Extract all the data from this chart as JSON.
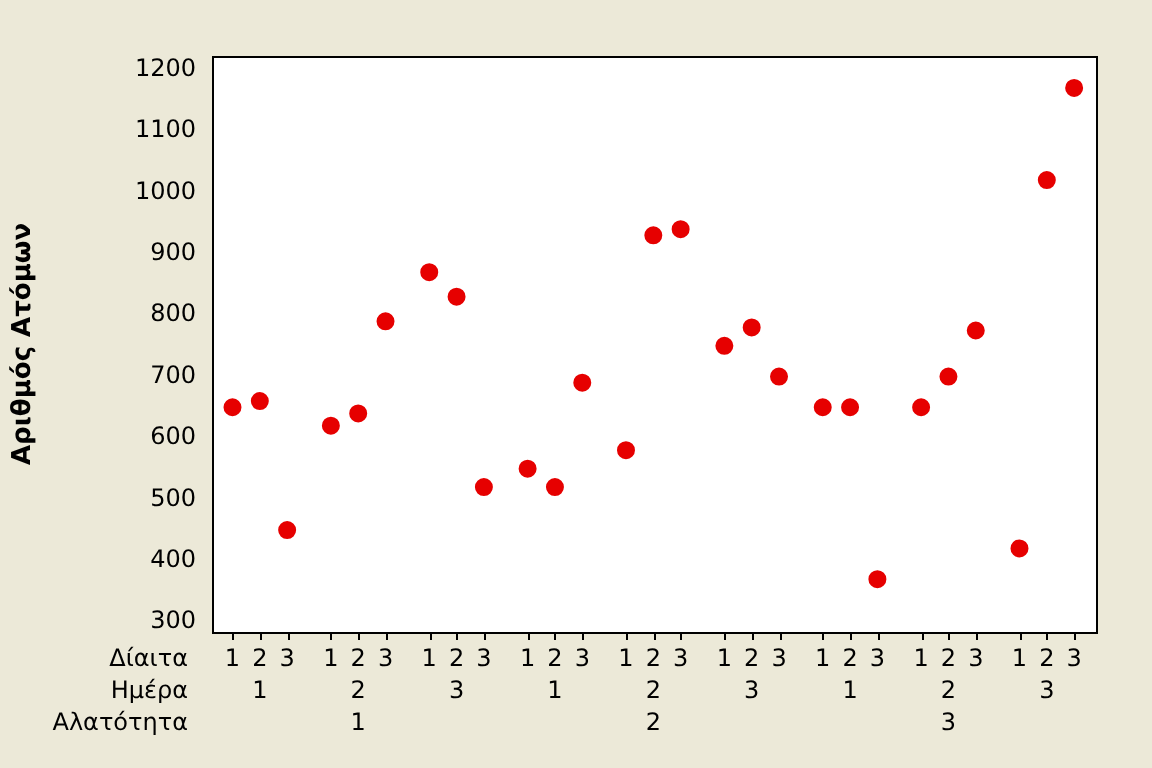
{
  "chart_data": {
    "type": "scatter",
    "ylabel": "Αριθμός Ατόμων",
    "categories": [
      "1",
      "2",
      "3",
      "1",
      "2",
      "3",
      "1",
      "2",
      "3",
      "1",
      "2",
      "3",
      "1",
      "2",
      "3",
      "1",
      "2",
      "3",
      "1",
      "2",
      "3",
      "1",
      "2",
      "3",
      "1",
      "2",
      "3"
    ],
    "values": [
      650,
      660,
      450,
      620,
      640,
      790,
      870,
      830,
      520,
      550,
      520,
      690,
      580,
      930,
      940,
      750,
      780,
      700,
      650,
      650,
      370,
      650,
      700,
      775,
      420,
      1020,
      1170
    ],
    "color": "#e60000",
    "marker": "circle",
    "ylim": [
      284,
      1222
    ],
    "yticks": [
      300,
      400,
      500,
      600,
      700,
      800,
      900,
      1000,
      1100,
      1200
    ],
    "annotations": [
      "Δίαιτα",
      "Ημέρα",
      "Αλατότητα",
      "1",
      "2",
      "3",
      "1",
      "2",
      "3",
      "1",
      "2",
      "3",
      "1",
      "2",
      "3"
    ]
  }
}
